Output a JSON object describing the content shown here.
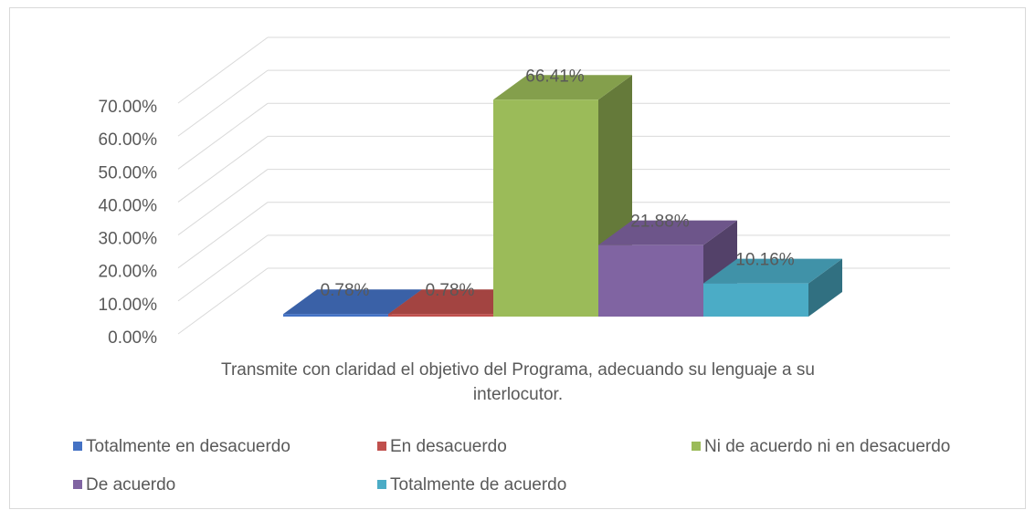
{
  "chart_data": {
    "type": "bar3d",
    "categories": [
      "Transmite con claridad el objetivo del Programa, adecuando su lenguaje a su interlocutor."
    ],
    "series": [
      {
        "name": "Totalmente en desacuerdo",
        "color": "#4472c4",
        "values": [
          0.78
        ],
        "value_labels": [
          "0.78%"
        ]
      },
      {
        "name": "En desacuerdo",
        "color": "#c0504d",
        "values": [
          0.78
        ],
        "value_labels": [
          "0.78%"
        ]
      },
      {
        "name": "Ni de acuerdo ni en desacuerdo",
        "color": "#9bbb59",
        "values": [
          66.41
        ],
        "value_labels": [
          "66.41%"
        ]
      },
      {
        "name": "De acuerdo",
        "color": "#8064a2",
        "values": [
          21.88
        ],
        "value_labels": [
          "21.88%"
        ]
      },
      {
        "name": "Totalmente de acuerdo",
        "color": "#4bacc6",
        "values": [
          10.16
        ],
        "value_labels": [
          "10.16%"
        ]
      }
    ],
    "ylim": [
      0,
      70
    ],
    "yticks": [
      {
        "value": 0,
        "label": "0.00%"
      },
      {
        "value": 10,
        "label": "10.00%"
      },
      {
        "value": 20,
        "label": "20.00%"
      },
      {
        "value": 30,
        "label": "30.00%"
      },
      {
        "value": 40,
        "label": "40.00%"
      },
      {
        "value": 50,
        "label": "50.00%"
      },
      {
        "value": 60,
        "label": "60.00%"
      },
      {
        "value": 70,
        "label": "70.00%"
      }
    ],
    "grid": true,
    "legend": "bottom"
  }
}
